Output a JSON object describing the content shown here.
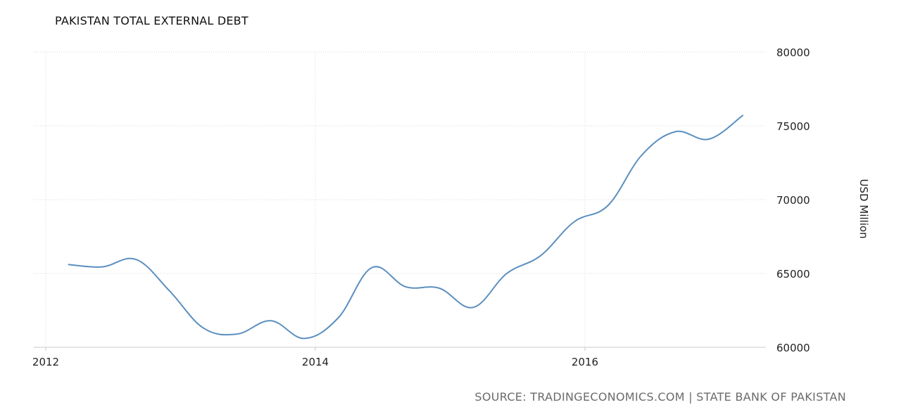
{
  "title": "PAKISTAN TOTAL EXTERNAL DEBT",
  "source": "SOURCE: TRADINGECONOMICS.COM | STATE BANK OF PAKISTAN",
  "colors": {
    "line": "#5b8fbf",
    "grid": "#d9d9d9",
    "text": "#222222",
    "source": "#6b6b6b"
  },
  "chart_data": {
    "type": "line",
    "title": "PAKISTAN TOTAL EXTERNAL DEBT",
    "xlabel": "",
    "ylabel": "USD Million",
    "x_ticks": [
      "2012",
      "2014",
      "2016"
    ],
    "y_ticks": [
      "60000",
      "65000",
      "70000",
      "75000",
      "80000"
    ],
    "xlim": [
      2012.0,
      2017.3
    ],
    "ylim": [
      60000,
      80000
    ],
    "grid": true,
    "legend": "none",
    "y_axis_side": "right",
    "series": [
      {
        "x": [
          2012.17,
          2012.42,
          2012.67,
          2012.92,
          2013.17,
          2013.42,
          2013.67,
          2013.92,
          2014.17,
          2014.42,
          2014.67,
          2014.92,
          2015.17,
          2015.42,
          2015.67,
          2015.92,
          2016.17,
          2016.42,
          2016.67,
          2016.92,
          2017.17
        ],
        "values": [
          65600,
          65450,
          65950,
          63800,
          61300,
          60900,
          61800,
          60600,
          62000,
          65400,
          64100,
          64000,
          62700,
          65000,
          66200,
          68500,
          69600,
          73000,
          74600,
          74100,
          75700
        ]
      }
    ]
  }
}
